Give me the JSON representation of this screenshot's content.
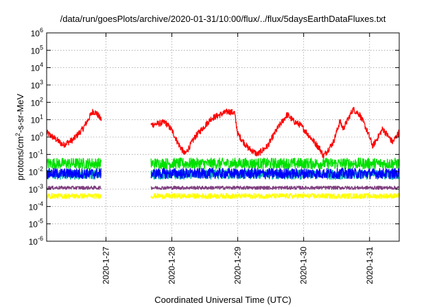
{
  "chart_data": {
    "type": "line",
    "title": "/data/run/goesPlots/archive/2020-01-31/10:00/flux/../flux/5daysEarthDataFluxes.txt",
    "xlabel": "Coordinated Universal Time (UTC)",
    "ylabel_main": "protons/cm",
    "ylabel_sup": "2",
    "ylabel_rest": "-s-sr-MeV",
    "x_range_days": [
      26.1,
      31.45
    ],
    "y_scale": "log",
    "ylim": [
      1e-06,
      1000000.0
    ],
    "grid": true,
    "legend": "none",
    "x_ticks": [
      {
        "value": 27,
        "label": "2020-1-27"
      },
      {
        "value": 28,
        "label": "2020-1-28"
      },
      {
        "value": 29,
        "label": "2020-1-29"
      },
      {
        "value": 30,
        "label": "2020-1-30"
      },
      {
        "value": 31,
        "label": "2020-1-31"
      }
    ],
    "y_ticks": [
      {
        "exp": -6,
        "base": "10",
        "sup": "-6"
      },
      {
        "exp": -5,
        "base": "10",
        "sup": "-5"
      },
      {
        "exp": -4,
        "base": "10",
        "sup": "-4"
      },
      {
        "exp": -3,
        "base": "10",
        "sup": "-3"
      },
      {
        "exp": -2,
        "base": "10",
        "sup": "-2"
      },
      {
        "exp": -1,
        "base": "10",
        "sup": "-1"
      },
      {
        "exp": 0,
        "base": "10",
        "sup": "0"
      },
      {
        "exp": 1,
        "base": "10",
        "sup": "1"
      },
      {
        "exp": 2,
        "base": "10",
        "sup": "2"
      },
      {
        "exp": 3,
        "base": "10",
        "sup": "3"
      },
      {
        "exp": 4,
        "base": "10",
        "sup": "4"
      },
      {
        "exp": 5,
        "base": "10",
        "sup": "5"
      },
      {
        "exp": 6,
        "base": "10",
        "sup": "6"
      }
    ],
    "data_gap": [
      26.93,
      27.68
    ],
    "series": [
      {
        "color": "#ff0000",
        "noise": 0.18,
        "points": [
          [
            26.1,
            1.8
          ],
          [
            26.25,
            0.7
          ],
          [
            26.35,
            0.35
          ],
          [
            26.5,
            0.7
          ],
          [
            26.65,
            3
          ],
          [
            26.8,
            30
          ],
          [
            26.85,
            25
          ],
          [
            26.93,
            10
          ],
          [
            27.68,
            5
          ],
          [
            27.9,
            7
          ],
          [
            28.0,
            2.5
          ],
          [
            28.1,
            0.4
          ],
          [
            28.2,
            0.1
          ],
          [
            28.35,
            1
          ],
          [
            28.6,
            12
          ],
          [
            28.85,
            30
          ],
          [
            28.95,
            25
          ],
          [
            29.0,
            1.5
          ],
          [
            29.15,
            0.25
          ],
          [
            29.3,
            0.1
          ],
          [
            29.45,
            0.3
          ],
          [
            29.6,
            3
          ],
          [
            29.75,
            20
          ],
          [
            29.85,
            8
          ],
          [
            29.95,
            5
          ],
          [
            30.1,
            1
          ],
          [
            30.25,
            0.2
          ],
          [
            30.3,
            0.08
          ],
          [
            30.45,
            0.5
          ],
          [
            30.55,
            8
          ],
          [
            30.6,
            3
          ],
          [
            30.75,
            40
          ],
          [
            30.85,
            20
          ],
          [
            30.95,
            3
          ],
          [
            31.05,
            0.3
          ],
          [
            31.2,
            3
          ],
          [
            31.35,
            0.5
          ],
          [
            31.45,
            2
          ]
        ]
      },
      {
        "color": "#00e000",
        "noise": 0.32,
        "points": [
          [
            26.1,
            0.03
          ],
          [
            26.93,
            0.03
          ],
          [
            27.68,
            0.03
          ],
          [
            31.45,
            0.03
          ]
        ]
      },
      {
        "color": "#00b0b0",
        "noise": 0.28,
        "points": [
          [
            26.1,
            0.007
          ],
          [
            26.93,
            0.007
          ],
          [
            27.68,
            0.007
          ],
          [
            31.45,
            0.007
          ]
        ]
      },
      {
        "color": "#0000ff",
        "noise": 0.3,
        "points": [
          [
            26.1,
            0.008
          ],
          [
            26.93,
            0.008
          ],
          [
            27.68,
            0.008
          ],
          [
            31.45,
            0.008
          ]
        ]
      },
      {
        "color": "#7f3f7f",
        "noise": 0.1,
        "points": [
          [
            26.1,
            0.0012
          ],
          [
            26.93,
            0.0012
          ],
          [
            27.68,
            0.0012
          ],
          [
            31.45,
            0.0012
          ]
        ]
      },
      {
        "color": "#ffff00",
        "noise": 0.15,
        "points": [
          [
            26.1,
            0.0004
          ],
          [
            26.93,
            0.0004
          ],
          [
            27.68,
            0.0004
          ],
          [
            31.45,
            0.0004
          ]
        ]
      }
    ]
  }
}
